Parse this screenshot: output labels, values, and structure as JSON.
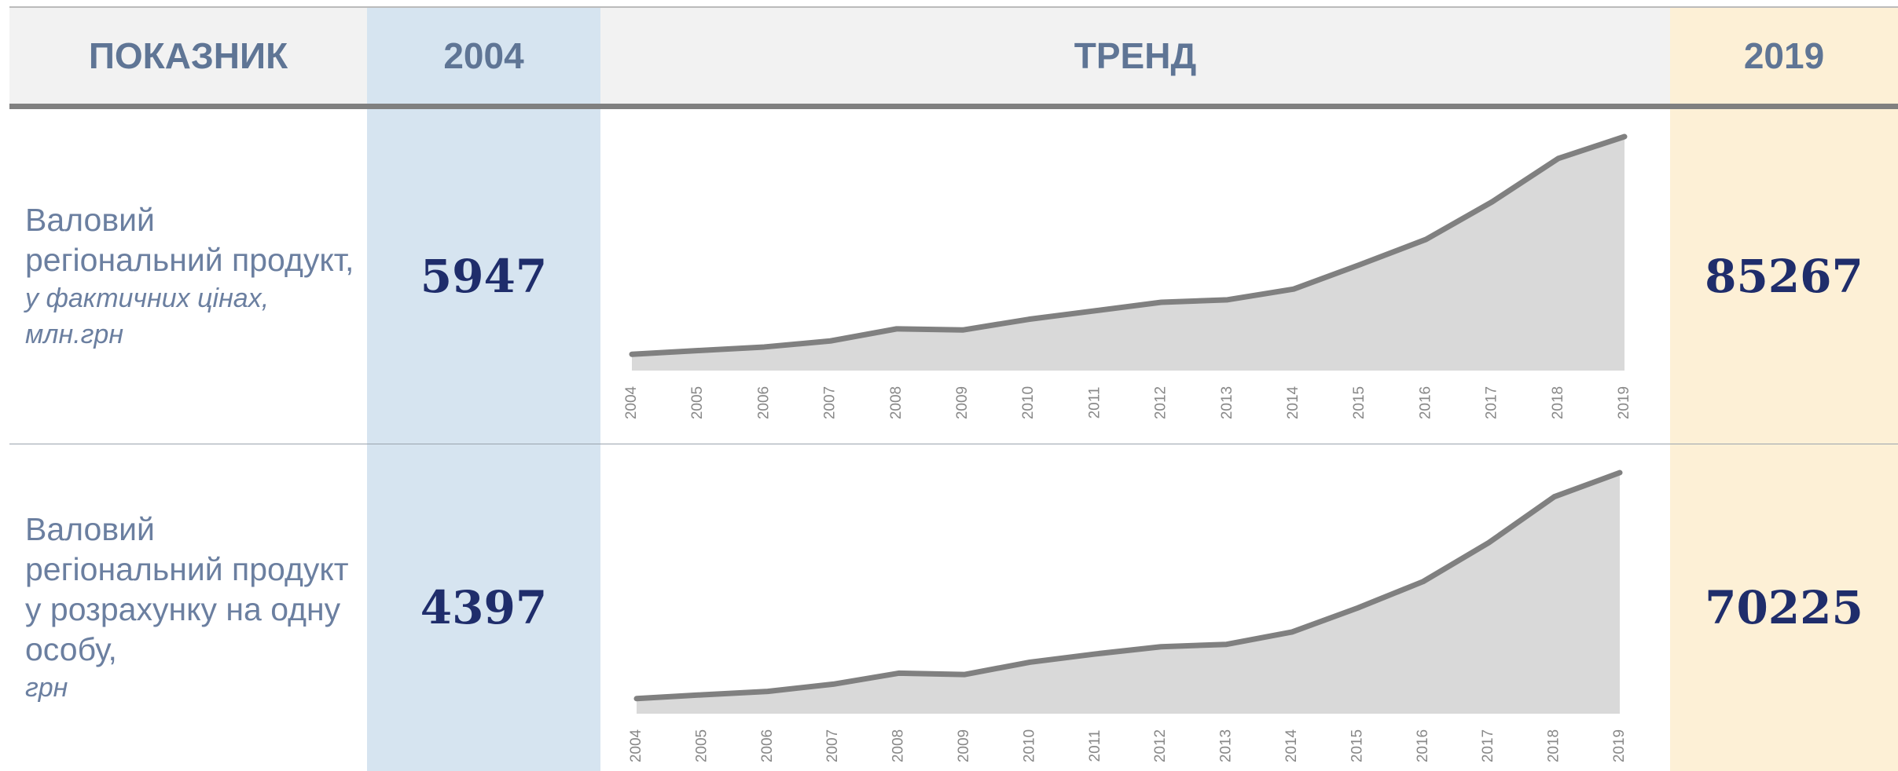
{
  "header": {
    "indicator": "ПОКАЗНИК",
    "start": "2004",
    "trend": "ТРЕНД",
    "end": "2019"
  },
  "rows": [
    {
      "label": "Валовий регіональний продукт,",
      "unit": "у фактичних цінах, млн.грн",
      "trend": {
        "type": "line",
        "categories": [
          "2004",
          "2005",
          "2006",
          "2007",
          "2008",
          "2009",
          "2010",
          "2011",
          "2012",
          "2013",
          "2014",
          "2015",
          "2016",
          "2017",
          "2018",
          "2019"
        ],
        "values": [
          5947,
          7300,
          8600,
          10800,
          15200,
          14800,
          18700,
          21800,
          24900,
          25800,
          29700,
          38600,
          47800,
          61500,
          77300,
          85267
        ],
        "color": "#808080",
        "fill": "#d9d9d9"
      }
    },
    {
      "label": "Валовий регіональний продукт у розрахунку на одну особу,",
      "unit": "грн",
      "trend": {
        "type": "line",
        "categories": [
          "2004",
          "2005",
          "2006",
          "2007",
          "2008",
          "2009",
          "2010",
          "2011",
          "2012",
          "2013",
          "2014",
          "2015",
          "2016",
          "2017",
          "2018",
          "2019"
        ],
        "values": [
          4397,
          5500,
          6500,
          8600,
          11800,
          11400,
          15000,
          17400,
          19500,
          20200,
          23800,
          30800,
          38500,
          49800,
          63200,
          70225
        ],
        "color": "#808080",
        "fill": "#d9d9d9"
      }
    }
  ]
}
